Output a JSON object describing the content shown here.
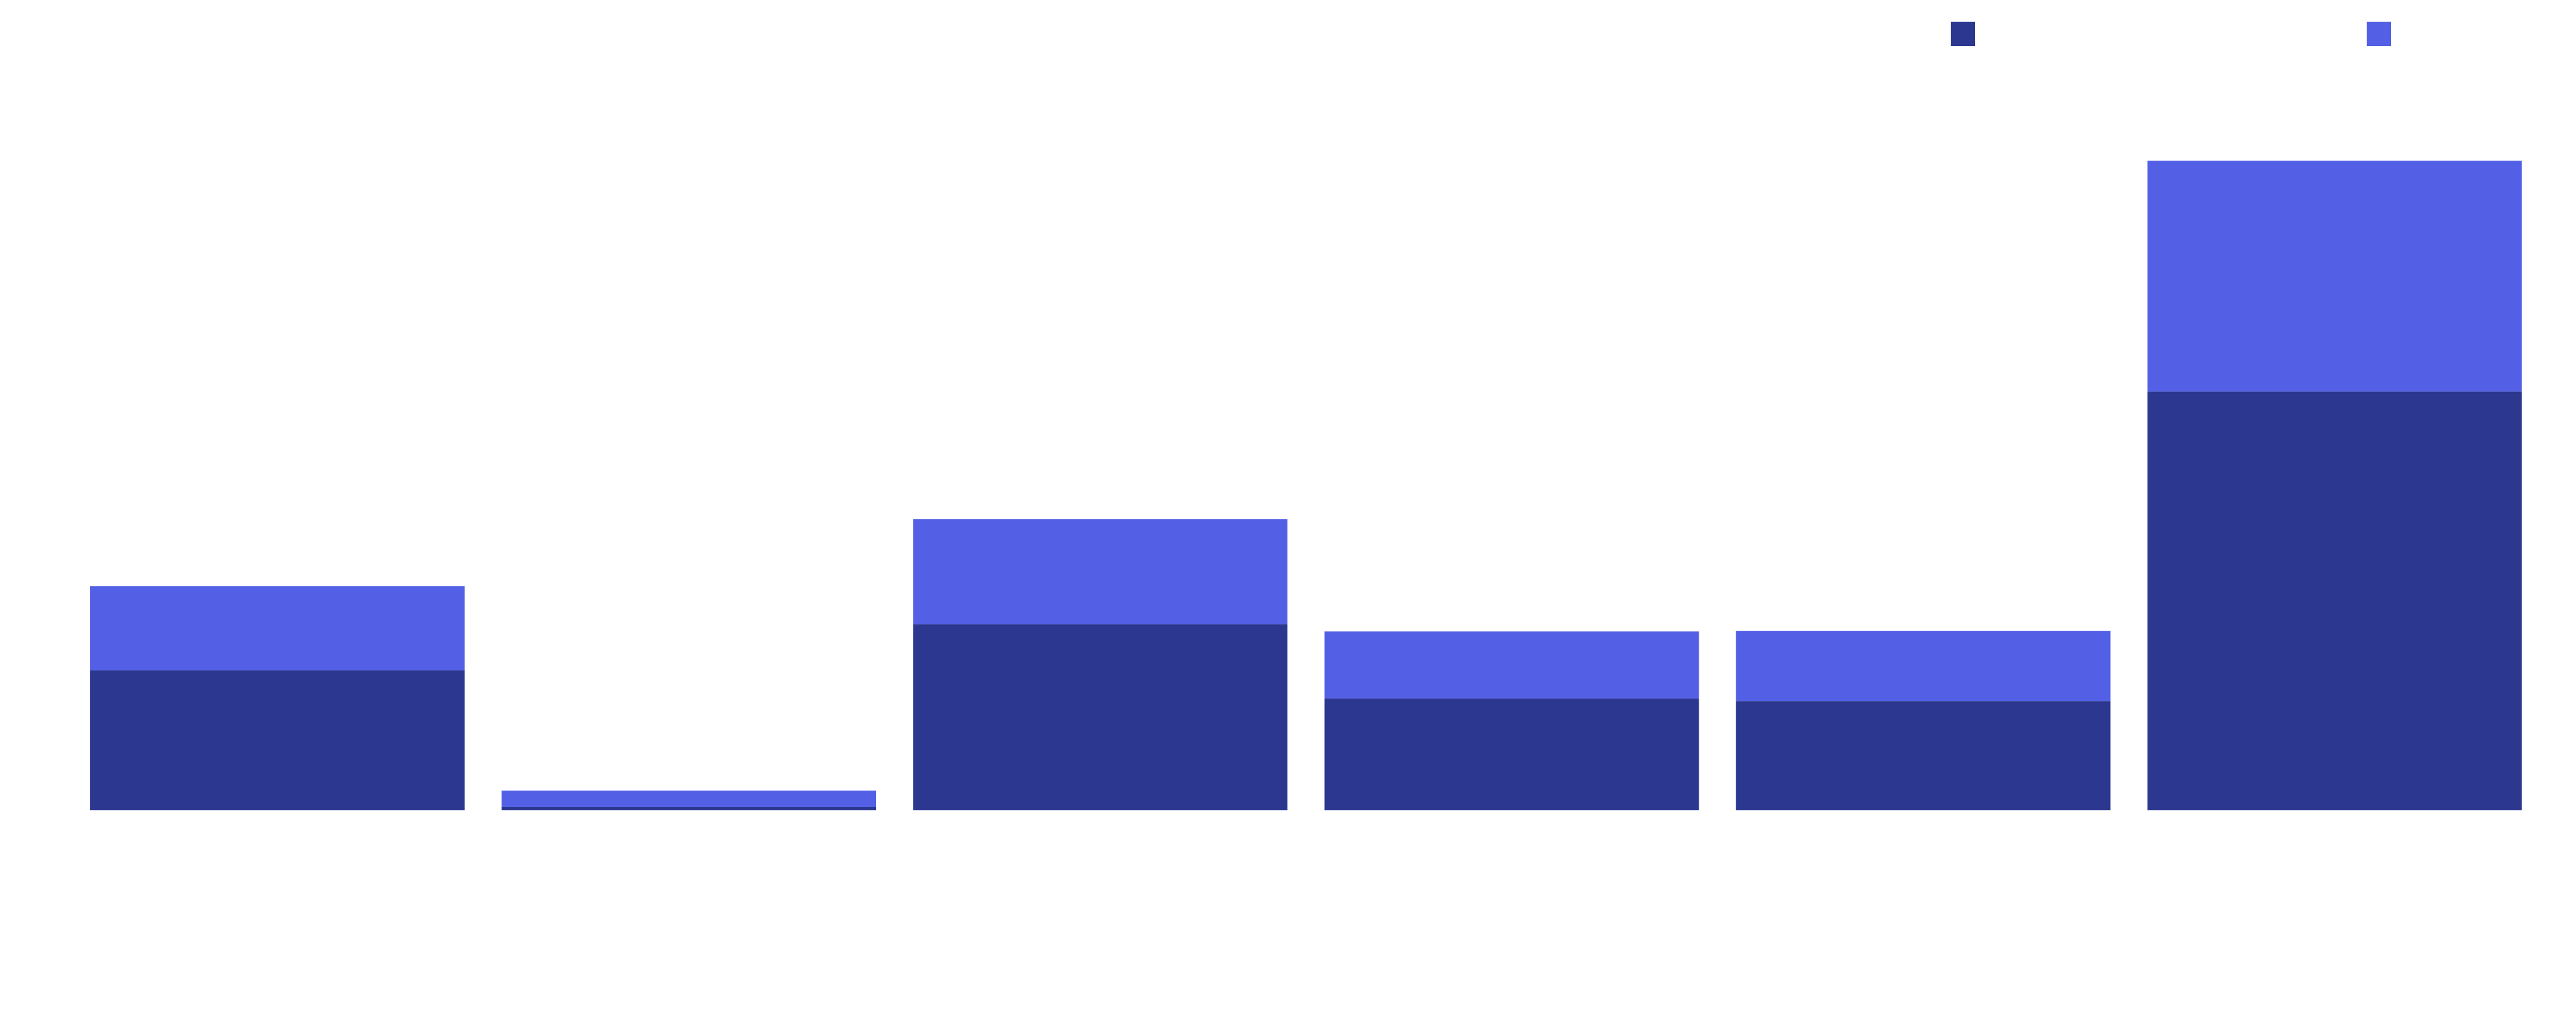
{
  "chart_data": {
    "type": "bar",
    "stacked": true,
    "categories": [
      "",
      "",
      "",
      "",
      "",
      ""
    ],
    "series": [
      {
        "color": "#2c3890",
        "values": [
          213,
          5,
          283,
          170,
          166,
          637
        ]
      },
      {
        "color": "#5360e6",
        "values": [
          128,
          25,
          160,
          102,
          107,
          351
        ]
      }
    ],
    "ylim": [
      0,
      1000
    ],
    "grid": false,
    "legend": {
      "position": "top-right"
    }
  }
}
